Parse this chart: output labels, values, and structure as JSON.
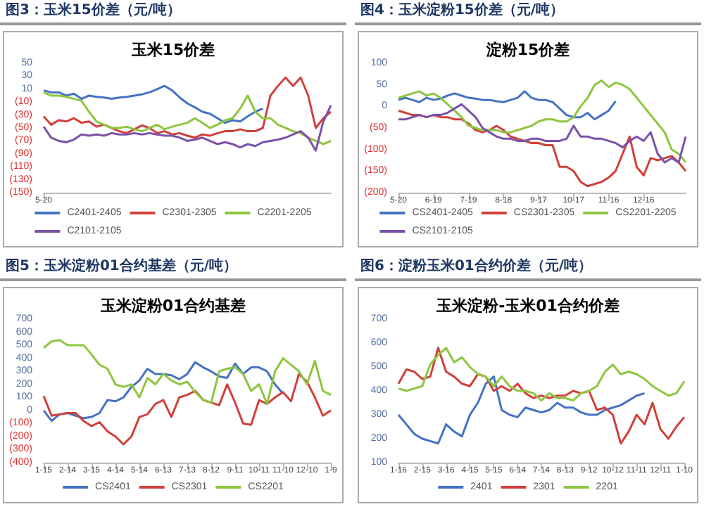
{
  "chart_data": [
    {
      "type": "line",
      "title": "图3：玉米15价差（元/吨）",
      "subtitle": "玉米15价差",
      "marker": "none",
      "legend": "bottom",
      "categories": [
        "5-20",
        null,
        null,
        null,
        null,
        null,
        null,
        null,
        null,
        null,
        null,
        null,
        null,
        null,
        null,
        null,
        null,
        null,
        null,
        null,
        null,
        null,
        null,
        null,
        null,
        null,
        null,
        null,
        null,
        null,
        null,
        null,
        null,
        null,
        null,
        null,
        null,
        null,
        null
      ],
      "ylim": [
        -150,
        50
      ],
      "yticks": [
        50,
        30,
        10,
        {
          "value": -10,
          "label": "(10)"
        },
        {
          "value": -30,
          "label": "(30)"
        },
        {
          "value": -50,
          "label": "(50)"
        },
        {
          "value": -70,
          "label": "(70)"
        },
        {
          "value": -90,
          "label": "(90)"
        },
        {
          "value": -110,
          "label": "(110)"
        },
        {
          "value": -130,
          "label": "(130)"
        },
        {
          "value": -150,
          "label": "(150)"
        }
      ],
      "series": [
        {
          "name": "C2401-2405",
          "color": "#4472c4",
          "values": [
            8,
            5,
            5,
            0,
            3,
            -5,
            0,
            -2,
            -3,
            -5,
            -3,
            -2,
            0,
            2,
            5,
            10,
            15,
            8,
            -3,
            -12,
            -18,
            -25,
            -28,
            -35,
            -42,
            -38,
            -40,
            -32,
            -25,
            -20,
            null,
            null,
            null,
            null,
            null,
            null,
            null,
            null,
            null
          ]
        },
        {
          "name": "C2301-2305",
          "color": "#d0403a",
          "values": [
            -32,
            -45,
            -38,
            -40,
            -35,
            -42,
            -40,
            -48,
            -45,
            -50,
            -55,
            -58,
            -52,
            -46,
            -50,
            -58,
            -55,
            -60,
            -58,
            -62,
            -65,
            -60,
            -62,
            -58,
            -55,
            -55,
            -52,
            -55,
            -55,
            -50,
            0,
            15,
            28,
            15,
            28,
            0,
            -50,
            -35,
            -25
          ]
        },
        {
          "name": "C2201-2205",
          "color": "#8dc63f",
          "values": [
            5,
            0,
            0,
            -2,
            -5,
            -8,
            -25,
            -40,
            -45,
            -50,
            -50,
            -48,
            -52,
            -55,
            -50,
            -45,
            -52,
            -48,
            -45,
            -42,
            -35,
            -42,
            -50,
            -45,
            -38,
            -35,
            -20,
            0,
            -25,
            -35,
            -35,
            -45,
            -50,
            -55,
            -58,
            -65,
            -70,
            -75,
            -70
          ]
        },
        {
          "name": "C2101-2105",
          "color": "#7b52a8",
          "values": [
            -48,
            -65,
            -70,
            -72,
            -68,
            -60,
            -62,
            -60,
            -62,
            -58,
            -60,
            -60,
            -58,
            -60,
            -58,
            -60,
            -62,
            -62,
            -65,
            -70,
            -68,
            -65,
            -70,
            -75,
            -72,
            -75,
            -80,
            -75,
            -78,
            -72,
            -70,
            -68,
            -65,
            -60,
            -55,
            -65,
            -85,
            -40,
            -15
          ]
        }
      ]
    },
    {
      "type": "line",
      "title": "图4：玉米淀粉15价差（元/吨）",
      "subtitle": "淀粉15价差",
      "marker": "none",
      "legend": "bottom",
      "categories": [
        "5-20",
        null,
        null,
        null,
        null,
        "6-19",
        null,
        null,
        null,
        null,
        "7-19",
        null,
        null,
        null,
        null,
        "8-18",
        null,
        null,
        null,
        null,
        "9-17",
        null,
        null,
        null,
        null,
        "10-17",
        null,
        null,
        null,
        null,
        "11-16",
        null,
        null,
        null,
        null,
        "12-16",
        null,
        null,
        null,
        null,
        null,
        null
      ],
      "ylim": [
        -200,
        100
      ],
      "yticks": [
        100,
        50,
        0,
        {
          "value": -50,
          "label": "(50)"
        },
        {
          "value": -100,
          "label": "(100)"
        },
        {
          "value": -150,
          "label": "(150)"
        },
        {
          "value": -200,
          "label": "(200)"
        }
      ],
      "series": [
        {
          "name": "CS2401-2405",
          "color": "#4472c4",
          "values": [
            15,
            20,
            15,
            10,
            20,
            15,
            18,
            25,
            30,
            25,
            20,
            18,
            15,
            15,
            12,
            10,
            15,
            20,
            35,
            20,
            15,
            15,
            10,
            -5,
            -20,
            -25,
            -25,
            -15,
            -30,
            -20,
            -10,
            12,
            null,
            null,
            null,
            null,
            null,
            null,
            null,
            null,
            null,
            null
          ]
        },
        {
          "name": "CS2301-2305",
          "color": "#d0403a",
          "values": [
            -10,
            -15,
            -20,
            -20,
            -25,
            -20,
            -25,
            -25,
            -30,
            -30,
            -40,
            -55,
            -60,
            -55,
            -45,
            -55,
            -70,
            -75,
            -80,
            -85,
            -85,
            -90,
            -90,
            -140,
            -140,
            -150,
            -175,
            -185,
            -180,
            -175,
            -165,
            -150,
            -110,
            -70,
            -140,
            -160,
            -120,
            -125,
            -120,
            -115,
            -130,
            -150
          ]
        },
        {
          "name": "CS2201-2205",
          "color": "#8dc63f",
          "values": [
            20,
            25,
            30,
            35,
            25,
            30,
            20,
            5,
            -10,
            -25,
            -45,
            -50,
            -55,
            -55,
            -55,
            -60,
            -60,
            -55,
            -50,
            -45,
            -35,
            -30,
            -30,
            -35,
            -35,
            -25,
            0,
            20,
            50,
            60,
            45,
            55,
            50,
            40,
            20,
            0,
            -20,
            -40,
            -60,
            -100,
            -110,
            -130
          ]
        },
        {
          "name": "CS2101-2105",
          "color": "#7b52a8",
          "values": [
            -30,
            -30,
            -25,
            -20,
            -25,
            -20,
            -20,
            -15,
            -5,
            5,
            -10,
            -25,
            -50,
            -60,
            -70,
            -75,
            -75,
            -80,
            -80,
            -75,
            -75,
            -80,
            -80,
            -80,
            -75,
            -45,
            -70,
            -70,
            -75,
            -75,
            -80,
            -85,
            -95,
            -80,
            -70,
            -80,
            -60,
            -110,
            -130,
            -120,
            -130,
            -70
          ]
        }
      ]
    },
    {
      "type": "line",
      "title": "图5：玉米淀粉01合约基差（元/吨）",
      "subtitle": "玉米淀粉01合约基差",
      "marker": "none",
      "legend": "bottom",
      "categories": [
        "1-15",
        null,
        null,
        "2-14",
        null,
        null,
        "3-15",
        null,
        null,
        "4-14",
        null,
        null,
        "5-14",
        null,
        null,
        "6-13",
        null,
        null,
        "7-13",
        null,
        null,
        "8-12",
        null,
        null,
        "9-11",
        null,
        null,
        "10-11",
        null,
        null,
        "11-10",
        null,
        null,
        "12-10",
        null,
        null,
        "1-9"
      ],
      "ylim": [
        -400,
        700
      ],
      "yticks": [
        700,
        600,
        500,
        400,
        300,
        200,
        100,
        0,
        {
          "value": -100,
          "label": "(100)"
        },
        {
          "value": -200,
          "label": "(200)"
        },
        {
          "value": -300,
          "label": "(300)"
        },
        {
          "value": -400,
          "label": "(400)"
        }
      ],
      "series": [
        {
          "name": "CS2401",
          "color": "#4472c4",
          "values": [
            0,
            -80,
            -30,
            -20,
            -40,
            -60,
            -50,
            -20,
            80,
            70,
            100,
            180,
            230,
            320,
            280,
            280,
            270,
            240,
            280,
            370,
            330,
            300,
            260,
            250,
            360,
            280,
            330,
            330,
            300,
            200,
            130,
            null,
            null,
            null,
            null,
            null,
            null
          ]
        },
        {
          "name": "CS2301",
          "color": "#d0403a",
          "values": [
            110,
            -40,
            -30,
            -20,
            -20,
            -80,
            -120,
            -90,
            -160,
            -200,
            -260,
            -200,
            -50,
            -30,
            50,
            80,
            -50,
            100,
            120,
            150,
            80,
            60,
            40,
            200,
            60,
            -100,
            -110,
            80,
            50,
            100,
            140,
            70,
            280,
            220,
            100,
            -40,
            0
          ]
        },
        {
          "name": "CS2201",
          "color": "#8dc63f",
          "values": [
            480,
            530,
            540,
            500,
            500,
            500,
            430,
            350,
            320,
            200,
            180,
            200,
            100,
            250,
            200,
            280,
            230,
            200,
            220,
            140,
            80,
            60,
            300,
            320,
            330,
            280,
            150,
            200,
            50,
            300,
            400,
            350,
            300,
            200,
            380,
            150,
            120
          ]
        }
      ]
    },
    {
      "type": "line",
      "title": "图6：淀粉玉米01合约价差（元/吨）",
      "subtitle": "玉米淀粉-玉米01合约价差",
      "marker": "none",
      "legend": "bottom",
      "categories": [
        "1-16",
        null,
        null,
        "2-15",
        null,
        null,
        "3-16",
        null,
        null,
        "4-15",
        null,
        null,
        "5-15",
        null,
        null,
        "6-14",
        null,
        null,
        "7-14",
        null,
        null,
        "8-13",
        null,
        null,
        "9-12",
        null,
        null,
        "10-12",
        null,
        null,
        "11-11",
        null,
        null,
        "12-11",
        null,
        null,
        "1-10"
      ],
      "ylim": [
        100,
        700
      ],
      "yticks": [
        700,
        600,
        500,
        400,
        300,
        200,
        100
      ],
      "series": [
        {
          "name": "2401",
          "color": "#4472c4",
          "values": [
            300,
            260,
            220,
            200,
            190,
            180,
            260,
            230,
            210,
            300,
            350,
            430,
            460,
            320,
            300,
            290,
            330,
            320,
            310,
            320,
            350,
            330,
            330,
            310,
            300,
            300,
            320,
            330,
            340,
            360,
            380,
            390,
            null,
            null,
            null,
            null,
            null
          ]
        },
        {
          "name": "2301",
          "color": "#d0403a",
          "values": [
            430,
            490,
            480,
            450,
            460,
            580,
            480,
            460,
            430,
            420,
            470,
            460,
            400,
            420,
            400,
            430,
            390,
            370,
            380,
            370,
            380,
            380,
            400,
            390,
            400,
            320,
            330,
            300,
            180,
            230,
            300,
            260,
            350,
            240,
            200,
            250,
            290
          ]
        },
        {
          "name": "2201",
          "color": "#8dc63f",
          "values": [
            410,
            400,
            410,
            420,
            510,
            550,
            580,
            520,
            540,
            500,
            470,
            460,
            420,
            460,
            420,
            400,
            400,
            390,
            360,
            390,
            370,
            370,
            360,
            390,
            400,
            420,
            480,
            510,
            470,
            480,
            470,
            450,
            420,
            400,
            380,
            390,
            440
          ]
        }
      ]
    }
  ]
}
